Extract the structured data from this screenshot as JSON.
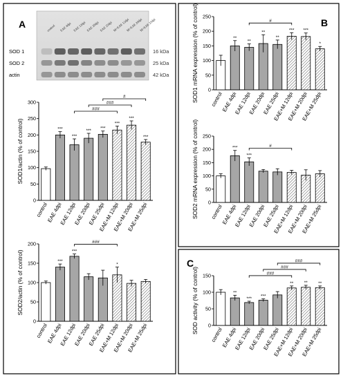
{
  "panels": {
    "a": {
      "letter": "A",
      "blot": {
        "lanes": [
          "control",
          "EAE 4dpi",
          "EAE 12dpi",
          "EAE 20dpi",
          "EAE 25dpi",
          "M+EAE 12dpi",
          "M+EAE 20dpi",
          "M+EAE 25dpi"
        ],
        "rows": [
          {
            "name": "SOD 1",
            "kda": "16 kDa"
          },
          {
            "name": "SOD 2",
            "kda": "25 kDa"
          },
          {
            "name": "actin",
            "kda": "42 kDa"
          }
        ]
      }
    },
    "b": {
      "letter": "B"
    },
    "c": {
      "letter": "C"
    }
  },
  "chart_data": [
    {
      "id": "a1",
      "panel": "A",
      "type": "bar",
      "ylabel": "SOD1/actin (% of control)",
      "ylim": [
        0,
        300
      ],
      "yticks": [
        0,
        50,
        100,
        150,
        200,
        250,
        300
      ],
      "categories": [
        "control",
        "EAE 4dpi",
        "EAE 12dpi",
        "EAE 20dpi",
        "EAE 25dpi",
        "EAE+M 12dpi",
        "EAE+M 20dpi",
        "EAE+M 25dpi"
      ],
      "values": [
        97,
        200,
        170,
        190,
        202,
        215,
        230,
        178
      ],
      "errors": [
        5,
        10,
        18,
        15,
        10,
        12,
        13,
        8
      ],
      "fills": [
        "white",
        "gray",
        "gray",
        "gray",
        "gray",
        "hatch",
        "hatch",
        "hatch"
      ],
      "stars": [
        "",
        "***",
        "***",
        "***",
        "***",
        "***",
        "***",
        "***"
      ],
      "brackets": [
        {
          "from": 2,
          "to": 5,
          "label": "###"
        },
        {
          "from": 3,
          "to": 6,
          "label": "###"
        },
        {
          "from": 4,
          "to": 7,
          "label": "#"
        }
      ]
    },
    {
      "id": "a2",
      "panel": "A",
      "type": "bar",
      "ylabel": "SOD2/actin (% of control)",
      "ylim": [
        0,
        200
      ],
      "yticks": [
        0,
        50,
        100,
        150,
        200
      ],
      "categories": [
        "control",
        "EAE 4dpi",
        "EAE 12dpi",
        "EAE 20dpi",
        "EAE 25dpi",
        "EAE+M 12dpi",
        "EAE+M 20dpi",
        "EAE+M 25dpi"
      ],
      "values": [
        100,
        140,
        168,
        115,
        112,
        120,
        98,
        103
      ],
      "errors": [
        4,
        8,
        6,
        8,
        20,
        20,
        8,
        5
      ],
      "fills": [
        "white",
        "gray",
        "gray",
        "gray",
        "gray",
        "hatch",
        "hatch",
        "hatch"
      ],
      "stars": [
        "",
        "***",
        "***",
        "",
        "",
        "*",
        "",
        ""
      ],
      "brackets": [
        {
          "from": 2,
          "to": 5,
          "label": "###"
        }
      ]
    },
    {
      "id": "b1",
      "panel": "B",
      "type": "bar",
      "ylabel": "SOD1 mRNA expression (% of control)",
      "ylim": [
        0,
        250
      ],
      "yticks": [
        0,
        50,
        100,
        150,
        200,
        250
      ],
      "categories": [
        "control",
        "EAE 4dpi",
        "EAE 12dpi",
        "EAE 20dpi",
        "EAE 25dpi",
        "EAE+M 12dpi",
        "EAE+M 20dpi",
        "EAE+M 25dpi"
      ],
      "values": [
        100,
        150,
        145,
        158,
        155,
        183,
        182,
        140
      ],
      "errors": [
        18,
        18,
        12,
        30,
        15,
        12,
        12,
        8
      ],
      "fills": [
        "white",
        "gray",
        "gray",
        "gray",
        "gray",
        "hatch",
        "hatch",
        "hatch"
      ],
      "stars": [
        "",
        "**",
        "**",
        "**",
        "**",
        "***",
        "***",
        "*"
      ],
      "brackets": [
        {
          "from": 2,
          "to": 5,
          "label": "#"
        }
      ]
    },
    {
      "id": "b2",
      "panel": "B",
      "type": "bar",
      "ylabel": "SOD2 mRNA expression (% of control)",
      "ylim": [
        0,
        250
      ],
      "yticks": [
        0,
        50,
        100,
        150,
        200,
        250
      ],
      "categories": [
        "control",
        "EAE 4dpi",
        "EAE 12dpi",
        "EAE 20dpi",
        "EAE 25dpi",
        "EAE+M 12dpi",
        "EAE+M 20dpi",
        "EAE+M 25dpi"
      ],
      "values": [
        100,
        176,
        153,
        118,
        115,
        113,
        103,
        108
      ],
      "errors": [
        8,
        20,
        15,
        6,
        12,
        8,
        20,
        12
      ],
      "fills": [
        "white",
        "gray",
        "gray",
        "gray",
        "gray",
        "hatch",
        "hatch",
        "hatch"
      ],
      "stars": [
        "",
        "***",
        "***",
        "",
        "",
        "",
        "",
        ""
      ],
      "brackets": [
        {
          "from": 2,
          "to": 5,
          "label": "#"
        }
      ]
    },
    {
      "id": "c1",
      "panel": "C",
      "type": "bar",
      "ylabel": "SOD activity (% of control)",
      "ylim": [
        0,
        150
      ],
      "yticks": [
        0,
        50,
        100,
        150
      ],
      "categories": [
        "control",
        "EAE 4dpi",
        "EAE 12dpi",
        "EAE 20dpi",
        "EAE 25dpi",
        "EAE+M 12dpi",
        "EAE+M 20dpi",
        "EAE+M 25dpi"
      ],
      "values": [
        100,
        83,
        69,
        76,
        92,
        113,
        115,
        114
      ],
      "errors": [
        8,
        8,
        4,
        4,
        10,
        6,
        6,
        5
      ],
      "fills": [
        "white",
        "gray",
        "gray",
        "gray",
        "gray",
        "hatch",
        "hatch",
        "hatch"
      ],
      "stars": [
        "",
        "**",
        "***",
        "***",
        "",
        "**",
        "**",
        "**"
      ],
      "brackets": [
        {
          "from": 2,
          "to": 5,
          "label": "###"
        },
        {
          "from": 3,
          "to": 6,
          "label": "###"
        },
        {
          "from": 4,
          "to": 7,
          "label": "###"
        }
      ]
    }
  ]
}
